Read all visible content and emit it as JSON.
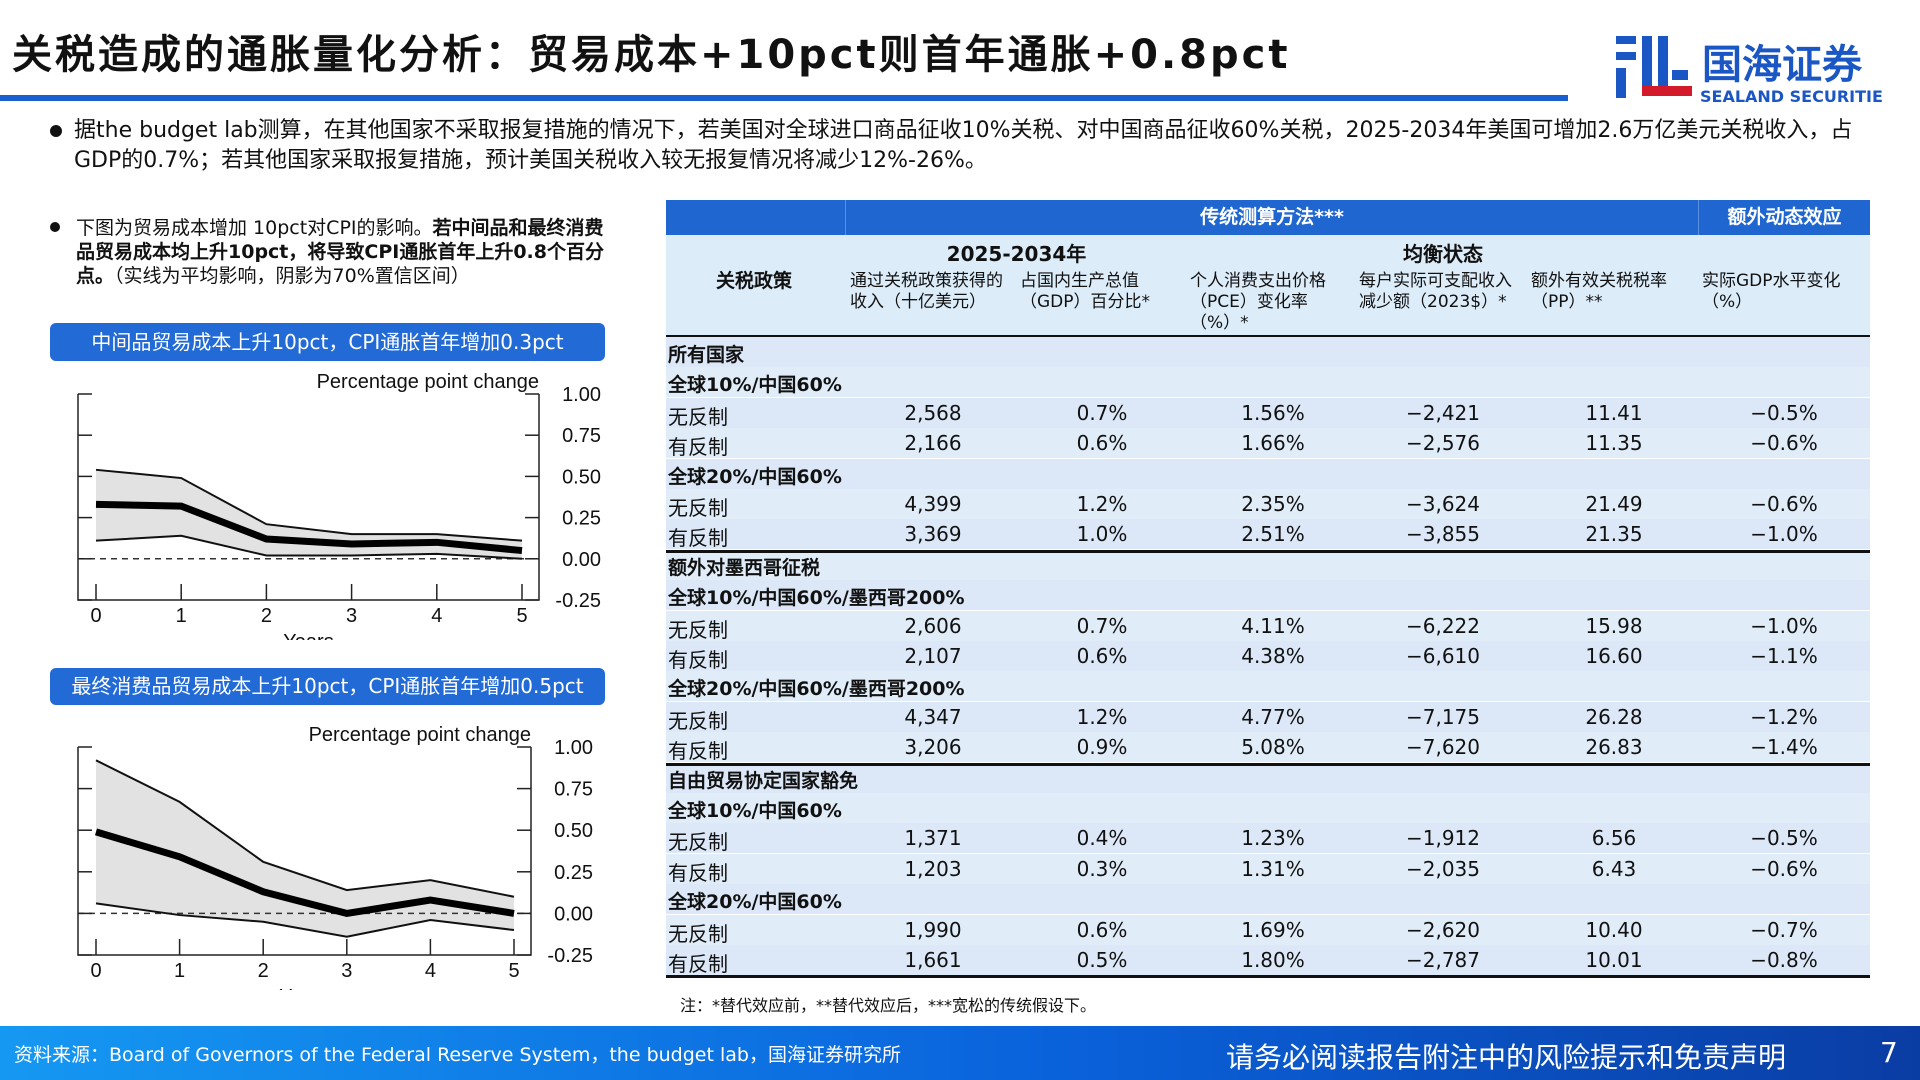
{
  "title": "关税造成的通胀量化分析：贸易成本+10pct则首年通胀+0.8pct",
  "logo": {
    "cn": "国海证券",
    "en": "SEALAND SECURITIES",
    "color": "#1a56c4"
  },
  "bullet1": "据the budget lab测算，在其他国家不采取报复措施的情况下，若美国对全球进口商品征收10%关税、对中国商品征收60%关税，2025-2034年美国可增加2.6万亿美元关税收入，占GDP的0.7%；若其他国家采取报复措施，预计美国关税收入较无报复情况将减少12%-26%。",
  "bullet2": {
    "normal1": "下图为贸易成本增加 10pct对CPI的影响。",
    "bold": "若中间品和最终消费品贸易成本均上升10pct，将导致CPI通胀首年上升0.8个百分点。",
    "normal2": "（实线为平均影响，阴影为70%置信区间）"
  },
  "chart_data": [
    {
      "type": "line",
      "banner": "中间品贸易成本上升10pct，CPI通胀首年增加0.3pct",
      "title": "Percentage point change",
      "xlabel": "Years",
      "x": [
        0,
        1,
        2,
        3,
        4,
        5
      ],
      "ylim": [
        -0.25,
        1.0
      ],
      "yticks": [
        "1.00",
        "0.75",
        "0.50",
        "0.25",
        "0.00",
        "-0.25"
      ],
      "ytick_values": [
        1,
        0.75,
        0.5,
        0.25,
        0,
        -0.25
      ],
      "mean": [
        0.33,
        0.32,
        0.12,
        0.09,
        0.1,
        0.05
      ],
      "upper": [
        0.54,
        0.49,
        0.21,
        0.15,
        0.15,
        0.11
      ],
      "lower": [
        0.11,
        0.14,
        0.02,
        0.02,
        0.03,
        0.0
      ]
    },
    {
      "type": "line",
      "banner": "最终消费品贸易成本上升10pct，CPI通胀首年增加0.5pct",
      "title": "Percentage point change",
      "xlabel": "Years",
      "x": [
        0,
        1,
        2,
        3,
        4,
        5
      ],
      "ylim": [
        -0.25,
        1.0
      ],
      "yticks": [
        "1.00",
        "0.75",
        "0.50",
        "0.25",
        "0.00",
        "-0.25"
      ],
      "ytick_values": [
        1,
        0.75,
        0.5,
        0.25,
        0,
        -0.25
      ],
      "mean": [
        0.49,
        0.34,
        0.13,
        0.0,
        0.08,
        0.0
      ],
      "upper": [
        0.92,
        0.67,
        0.31,
        0.14,
        0.2,
        0.1
      ],
      "lower": [
        0.06,
        -0.01,
        -0.05,
        -0.14,
        -0.04,
        -0.1
      ]
    }
  ],
  "table": {
    "group1": "传统测算方法***",
    "group2": "额外动态效应",
    "sub1": "2025-2034年",
    "sub2": "均衡状态",
    "headers": [
      "关税政策",
      "通过关税政策获得的\n收入（十亿美元）",
      "占国内生产总值\n（GDP）百分比*",
      "个人消费支出价格\n（PCE）变化率\n（%）*",
      "每户实际可支配收入\n减少额（2023$）*",
      "额外有效关税税率\n（PP）**",
      "实际GDP水平变化\n（%）"
    ],
    "rows": [
      {
        "label": "所有国家",
        "type": "section"
      },
      {
        "label": "全球10%/中国60%",
        "type": "sub"
      },
      {
        "label": "无反制",
        "values": [
          "2,568",
          "0.7%",
          "1.56%",
          "−2,421",
          "11.41",
          "−0.5%"
        ]
      },
      {
        "label": "有反制",
        "values": [
          "2,166",
          "0.6%",
          "1.66%",
          "−2,576",
          "11.35",
          "−0.6%"
        ]
      },
      {
        "label": "全球20%/中国60%",
        "type": "sub"
      },
      {
        "label": "无反制",
        "values": [
          "4,399",
          "1.2%",
          "2.35%",
          "−3,624",
          "21.49",
          "−0.6%"
        ]
      },
      {
        "label": "有反制",
        "values": [
          "3,369",
          "1.0%",
          "2.51%",
          "−3,855",
          "21.35",
          "−1.0%"
        ]
      },
      {
        "label": "额外对墨西哥征税",
        "type": "section"
      },
      {
        "label": "全球10%/中国60%/墨西哥200%",
        "type": "sub"
      },
      {
        "label": "无反制",
        "values": [
          "2,606",
          "0.7%",
          "4.11%",
          "−6,222",
          "15.98",
          "−1.0%"
        ]
      },
      {
        "label": "有反制",
        "values": [
          "2,107",
          "0.6%",
          "4.38%",
          "−6,610",
          "16.60",
          "−1.1%"
        ]
      },
      {
        "label": "全球20%/中国60%/墨西哥200%",
        "type": "sub"
      },
      {
        "label": "无反制",
        "values": [
          "4,347",
          "1.2%",
          "4.77%",
          "−7,175",
          "26.28",
          "−1.2%"
        ]
      },
      {
        "label": "有反制",
        "values": [
          "3,206",
          "0.9%",
          "5.08%",
          "−7,620",
          "26.83",
          "−1.4%"
        ]
      },
      {
        "label": "自由贸易协定国家豁免",
        "type": "section"
      },
      {
        "label": "全球10%/中国60%",
        "type": "sub"
      },
      {
        "label": "无反制",
        "values": [
          "1,371",
          "0.4%",
          "1.23%",
          "−1,912",
          "6.56",
          "−0.5%"
        ]
      },
      {
        "label": "有反制",
        "values": [
          "1,203",
          "0.3%",
          "1.31%",
          "−2,035",
          "6.43",
          "−0.6%"
        ]
      },
      {
        "label": "全球20%/中国60%",
        "type": "sub"
      },
      {
        "label": "无反制",
        "values": [
          "1,990",
          "0.6%",
          "1.69%",
          "−2,620",
          "10.40",
          "−0.7%"
        ]
      },
      {
        "label": "有反制",
        "values": [
          "1,661",
          "0.5%",
          "1.80%",
          "−2,787",
          "10.01",
          "−0.8%"
        ]
      }
    ]
  },
  "note": "注：*替代效应前，**替代效应后，***宽松的传统假设下。",
  "footer": {
    "source": "资料来源：Board of Governors of the Federal Reserve System，the budget lab，国海证券研究所",
    "disclaimer": "请务必阅读报告附注中的风险提示和免责声明",
    "page": "7"
  }
}
